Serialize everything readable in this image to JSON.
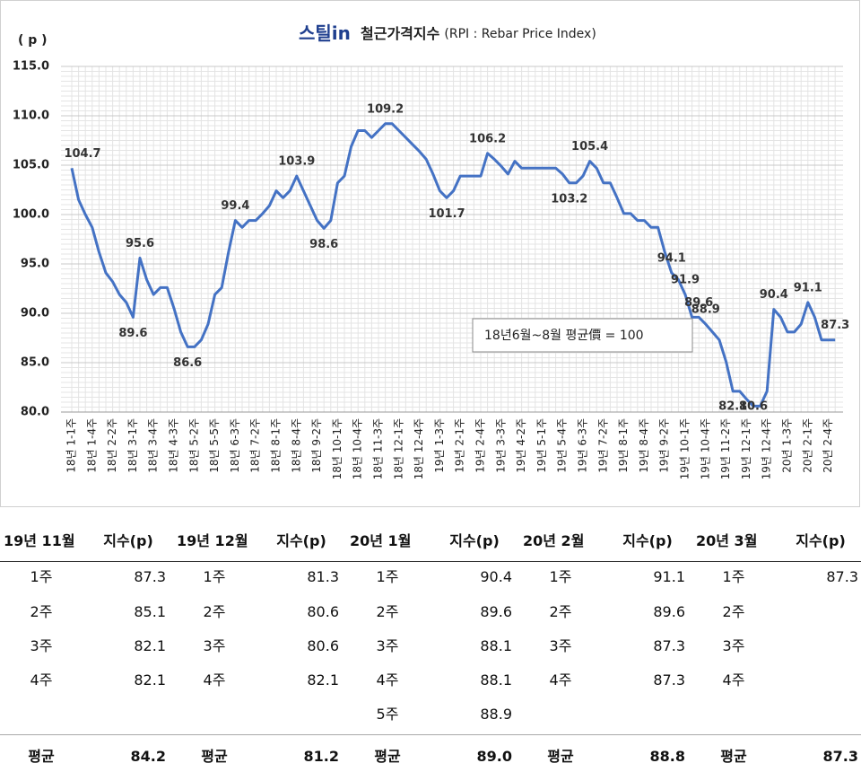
{
  "chart_data": {
    "type": "line",
    "title_logo": "스틸in",
    "title": "철근가격지수",
    "subtitle": "(RPI : Rebar Price Index)",
    "y_label": "( p )",
    "annotation": "18년6월~8월 평균價 = 100",
    "color": "#4472c4",
    "grid": true,
    "ylim": [
      80,
      115
    ],
    "yticks": [
      {
        "value": 80,
        "label": "80.0"
      },
      {
        "value": 85,
        "label": "85.0"
      },
      {
        "value": 90,
        "label": "90.0"
      },
      {
        "value": 95,
        "label": "95.0"
      },
      {
        "value": 100,
        "label": "100.0"
      },
      {
        "value": 105,
        "label": "105.0"
      },
      {
        "value": 110,
        "label": "110.0"
      },
      {
        "value": 115,
        "label": "115.0"
      }
    ],
    "categories": [
      "18년 1-1주",
      null,
      null,
      "18년 1-4주",
      null,
      null,
      "18년 2-2주",
      null,
      null,
      "18년 3-1주",
      null,
      null,
      "18년 3-4주",
      null,
      null,
      "18년 4-3주",
      null,
      null,
      "18년 5-2주",
      null,
      null,
      "18년 5-5주",
      null,
      null,
      "18년 6-3주",
      null,
      null,
      "18년 7-2주",
      null,
      null,
      "18년 8-1주",
      null,
      null,
      "18년 8-4주",
      null,
      null,
      "18년 9-2주",
      null,
      null,
      "18년 10-1주",
      null,
      null,
      "18년 10-4주",
      null,
      null,
      "18년 11-3주",
      null,
      null,
      "18년 12-1주",
      null,
      null,
      "18년 12-4주",
      null,
      null,
      "19년 1-3주",
      null,
      null,
      "19년 2-1주",
      null,
      null,
      "19년 2-4주",
      null,
      null,
      "19년 3-3주",
      null,
      null,
      "19년 4-2주",
      null,
      null,
      "19년 5-1주",
      null,
      null,
      "19년 5-4주",
      null,
      null,
      "19년 6-3주",
      null,
      null,
      "19년 7-2주",
      null,
      null,
      "19년 8-1주",
      null,
      null,
      "19년 8-4주",
      null,
      null,
      "19년 9-2주",
      null,
      null,
      "19년 10-1주",
      null,
      null,
      "19년 10-4주",
      null,
      null,
      "19년 11-2주",
      null,
      null,
      "19년 12-1주",
      null,
      null,
      "19년 12-4주",
      null,
      null,
      "20년 1-3주",
      null,
      null,
      "20년 2-1주",
      null,
      null,
      "20년 2-4주",
      null
    ],
    "values": [
      104.7,
      101.5,
      100.0,
      98.7,
      96.2,
      94.1,
      93.2,
      91.9,
      91.1,
      89.6,
      95.6,
      93.4,
      91.9,
      92.6,
      92.6,
      90.5,
      88.1,
      86.6,
      86.6,
      87.3,
      88.9,
      91.9,
      92.6,
      96.2,
      99.4,
      98.7,
      99.4,
      99.4,
      100.1,
      100.9,
      102.4,
      101.7,
      102.4,
      103.9,
      102.4,
      100.9,
      99.4,
      98.6,
      99.4,
      103.2,
      103.9,
      106.9,
      108.5,
      108.5,
      107.8,
      108.5,
      109.2,
      109.2,
      108.5,
      107.8,
      107.1,
      106.4,
      105.6,
      104.1,
      102.4,
      101.7,
      102.4,
      103.9,
      103.9,
      103.9,
      103.9,
      106.2,
      105.6,
      104.9,
      104.1,
      105.4,
      104.7,
      104.7,
      104.7,
      104.7,
      104.7,
      104.7,
      104.1,
      103.2,
      103.2,
      103.9,
      105.4,
      104.7,
      103.2,
      103.2,
      101.7,
      100.1,
      100.1,
      99.4,
      99.4,
      98.7,
      98.7,
      96.2,
      94.1,
      93.4,
      91.9,
      89.6,
      89.6,
      88.9,
      88.1,
      87.3,
      85.1,
      82.1,
      82.1,
      81.3,
      80.6,
      80.6,
      82.1,
      90.4,
      89.6,
      88.1,
      88.1,
      88.9,
      91.1,
      89.6,
      87.3,
      87.3,
      87.3
    ],
    "labeled_points": [
      0,
      9,
      10,
      17,
      24,
      33,
      37,
      46,
      55,
      61,
      73,
      76,
      88,
      90,
      92,
      93,
      97,
      100,
      103,
      108,
      112
    ]
  },
  "table": {
    "groups": [
      {
        "month": "19년 11월",
        "unit": "지수(p)",
        "weeks": [
          {
            "week": "1주",
            "value": "87.3"
          },
          {
            "week": "2주",
            "value": "85.1"
          },
          {
            "week": "3주",
            "value": "82.1"
          },
          {
            "week": "4주",
            "value": "82.1"
          }
        ],
        "avg_label": "평균",
        "avg": "84.2"
      },
      {
        "month": "19년 12월",
        "unit": "지수(p)",
        "weeks": [
          {
            "week": "1주",
            "value": "81.3"
          },
          {
            "week": "2주",
            "value": "80.6"
          },
          {
            "week": "3주",
            "value": "80.6"
          },
          {
            "week": "4주",
            "value": "82.1"
          }
        ],
        "avg_label": "평균",
        "avg": "81.2"
      },
      {
        "month": "20년 1월",
        "unit": "지수(p)",
        "weeks": [
          {
            "week": "1주",
            "value": "90.4"
          },
          {
            "week": "2주",
            "value": "89.6"
          },
          {
            "week": "3주",
            "value": "88.1"
          },
          {
            "week": "4주",
            "value": "88.1"
          },
          {
            "week": "5주",
            "value": "88.9"
          }
        ],
        "avg_label": "평균",
        "avg": "89.0"
      },
      {
        "month": "20년 2월",
        "unit": "지수(p)",
        "weeks": [
          {
            "week": "1주",
            "value": "91.1"
          },
          {
            "week": "2주",
            "value": "89.6"
          },
          {
            "week": "3주",
            "value": "87.3"
          },
          {
            "week": "4주",
            "value": "87.3"
          }
        ],
        "avg_label": "평균",
        "avg": "88.8"
      },
      {
        "month": "20년 3월",
        "unit": "지수(p)",
        "weeks": [
          {
            "week": "1주",
            "value": "87.3"
          },
          {
            "week": "2주",
            "value": null
          },
          {
            "week": "3주",
            "value": null
          },
          {
            "week": "4주",
            "value": null
          }
        ],
        "avg_label": "평균",
        "avg": "87.3"
      }
    ]
  }
}
